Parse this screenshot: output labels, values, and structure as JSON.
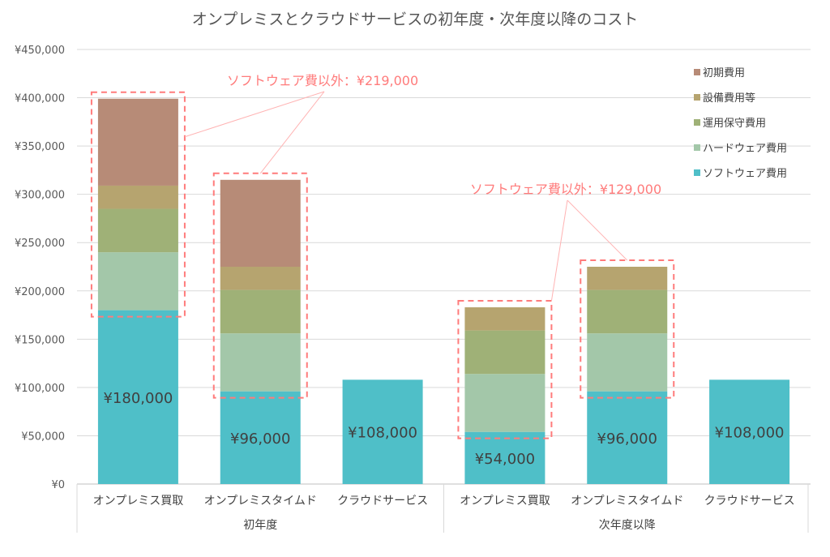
{
  "chart_data": {
    "type": "stacked-bar",
    "title": "オンプレミスとクラウドサービスの初年度・次年度以降のコスト",
    "groups": [
      {
        "label": "初年度",
        "categories": [
          "オンプレミス買取",
          "オンプレミスタイムド",
          "クラウドサービス"
        ]
      },
      {
        "label": "次年度以降",
        "categories": [
          "オンプレミス買取",
          "オンプレミスタイムド",
          "クラウドサービス"
        ]
      }
    ],
    "series": [
      {
        "name": "ソフトウェア費用",
        "color": "#4fbfc8",
        "values": [
          180000,
          96000,
          108000,
          54000,
          96000,
          108000
        ]
      },
      {
        "name": "ハードウェア費用",
        "color": "#a3c7a9",
        "values": [
          60000,
          60000,
          0,
          60000,
          60000,
          0
        ]
      },
      {
        "name": "運用保守費用",
        "color": "#9fb177",
        "values": [
          45000,
          45000,
          0,
          45000,
          45000,
          0
        ]
      },
      {
        "name": "設備費用等",
        "color": "#b6a46f",
        "values": [
          24000,
          24000,
          0,
          24000,
          24000,
          0
        ]
      },
      {
        "name": "初期費用",
        "color": "#b78b77",
        "values": [
          90000,
          90000,
          0,
          0,
          0,
          0
        ]
      }
    ],
    "data_labels": [
      "¥180,000",
      "¥96,000",
      "¥108,000",
      "¥54,000",
      "¥96,000",
      "¥108,000"
    ],
    "ylim": [
      0,
      450000
    ],
    "yticks": [
      "¥0",
      "¥50,000",
      "¥100,000",
      "¥150,000",
      "¥200,000",
      "¥250,000",
      "¥300,000",
      "¥350,000",
      "¥400,000",
      "¥450,000"
    ],
    "grid": true,
    "legend": "top-right",
    "annotations": [
      {
        "text": "ソフトウェア費以外：¥219,000",
        "bars": [
          0,
          1
        ],
        "color": "#ff7b7b"
      },
      {
        "text": "ソフトウェア費以外：¥129,000",
        "bars": [
          3,
          4
        ],
        "color": "#ff7b7b"
      }
    ]
  }
}
